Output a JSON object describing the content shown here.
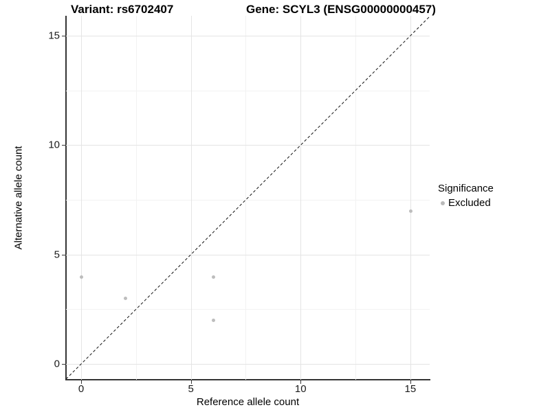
{
  "figure": {
    "title_left": "Variant: rs6702407",
    "title_right": "Gene: SCYL3 (ENSG00000000457)"
  },
  "legend": {
    "title": "Significance",
    "items": [
      {
        "label": "Excluded",
        "color": "#b9b9b9"
      }
    ]
  },
  "chart_data": {
    "type": "scatter",
    "xlabel": "Reference allele count",
    "ylabel": "Alternative allele count",
    "series": [
      {
        "name": "Excluded",
        "color": "#bdbdbd",
        "points": [
          [
            0,
            4
          ],
          [
            2,
            3
          ],
          [
            6,
            2
          ],
          [
            6,
            4
          ],
          [
            15,
            7
          ]
        ]
      }
    ],
    "x_ticks": [
      0,
      5,
      10,
      15
    ],
    "y_ticks": [
      0,
      5,
      10,
      15
    ],
    "x_minor_ticks": [
      2.5,
      7.5,
      12.5
    ],
    "y_minor_ticks": [
      2.5,
      7.5,
      12.5
    ],
    "xlim": [
      -0.69,
      15.88
    ],
    "ylim": [
      -0.72,
      15.91
    ],
    "reference_line": {
      "type": "identity",
      "slope": 1,
      "intercept": 0,
      "style": "dashed",
      "color": "#111111"
    },
    "grid": {
      "major_color": "#e4e4e4",
      "minor_color": "#f2f2f2"
    },
    "legend_position": "right"
  }
}
